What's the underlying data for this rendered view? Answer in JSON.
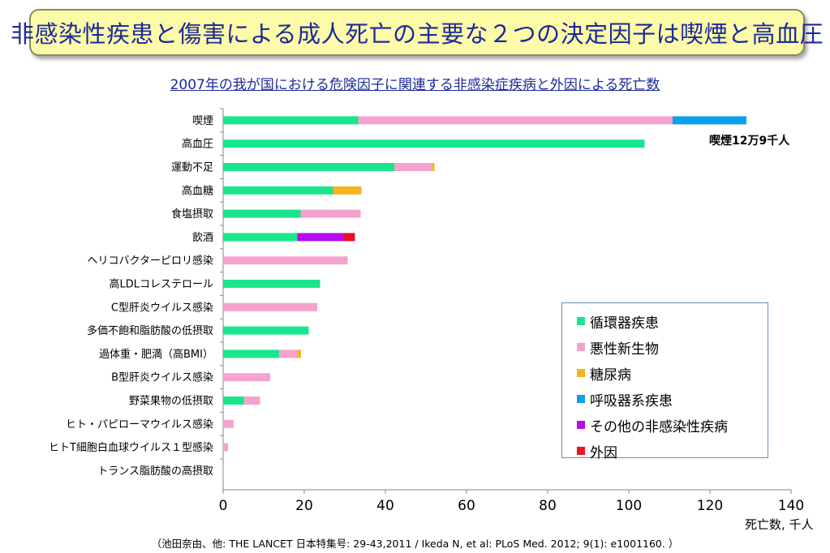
{
  "title": "非感染性疾患と傷害による成人死亡の主要な２つの決定因子は喫煙と高血圧",
  "chart_data": {
    "type": "bar",
    "orientation": "horizontal",
    "stacked": true,
    "title": "2007年の我が国における危険因子に関連する非感染症疾病と外因による死亡数",
    "xlabel": "死亡数, 千人",
    "ylabel": "",
    "xlim": [
      0,
      140
    ],
    "xticks": [
      0,
      20,
      40,
      60,
      80,
      100,
      120,
      140
    ],
    "grid": false,
    "legend_position": "bottom-right",
    "categories": [
      "喫煙",
      "高血圧",
      "運動不足",
      "高血糖",
      "食塩摂取",
      "飲酒",
      "ヘリコバクターピロリ感染",
      "高LDLコレステロール",
      "C型肝炎ウイルス感染",
      "多価不飽和脂肪酸の低摂取",
      "過体重・肥満（高BMI）",
      "B型肝炎ウイルス感染",
      "野菜果物の低摂取",
      "ヒト・パピローマウイルス感染",
      "ヒトT細胞白血球ウイルス１型感染",
      "トランス脂肪酸の高摂取"
    ],
    "series": [
      {
        "name": "循環器疾患",
        "color": "#19e68c",
        "values": [
          33.3,
          103.9,
          42.2,
          27.1,
          19.1,
          18.3,
          0,
          23.9,
          0,
          21.1,
          13.8,
          0,
          5.1,
          0,
          0,
          0.1
        ]
      },
      {
        "name": "悪性新生物",
        "color": "#f4a3cf",
        "values": [
          77.5,
          0,
          9.3,
          0,
          14.8,
          0,
          30.7,
          0,
          23.2,
          0,
          4.4,
          11.6,
          4.0,
          2.6,
          1.2,
          0
        ]
      },
      {
        "name": "糖尿病",
        "color": "#f5b41e",
        "values": [
          0,
          0,
          0.6,
          7.0,
          0,
          0,
          0,
          0,
          0,
          0,
          1.0,
          0,
          0,
          0,
          0,
          0
        ]
      },
      {
        "name": "呼吸器系疾患",
        "color": "#0da0e8",
        "values": [
          18.2,
          0,
          0,
          0,
          0,
          0,
          0,
          0,
          0,
          0,
          0,
          0,
          0,
          0,
          0,
          0
        ]
      },
      {
        "name": "その他の非感染性疾病",
        "color": "#b70bf0",
        "values": [
          0,
          0,
          0,
          0,
          0,
          11.4,
          0,
          0,
          0,
          0,
          0,
          0,
          0,
          0,
          0,
          0
        ]
      },
      {
        "name": "外因",
        "color": "#e8141e",
        "values": [
          0,
          0,
          0,
          0,
          0,
          2.8,
          0,
          0,
          0,
          0,
          0,
          0,
          0,
          0,
          0,
          0
        ]
      }
    ],
    "annotations": [
      "喫煙12万9千人"
    ]
  },
  "footnote": "（池田奈由、他: THE LANCET 日本特集号: 29-43,2011 / Ikeda N, et al: PLoS Med. 2012; 9(1): e1001160. ）"
}
